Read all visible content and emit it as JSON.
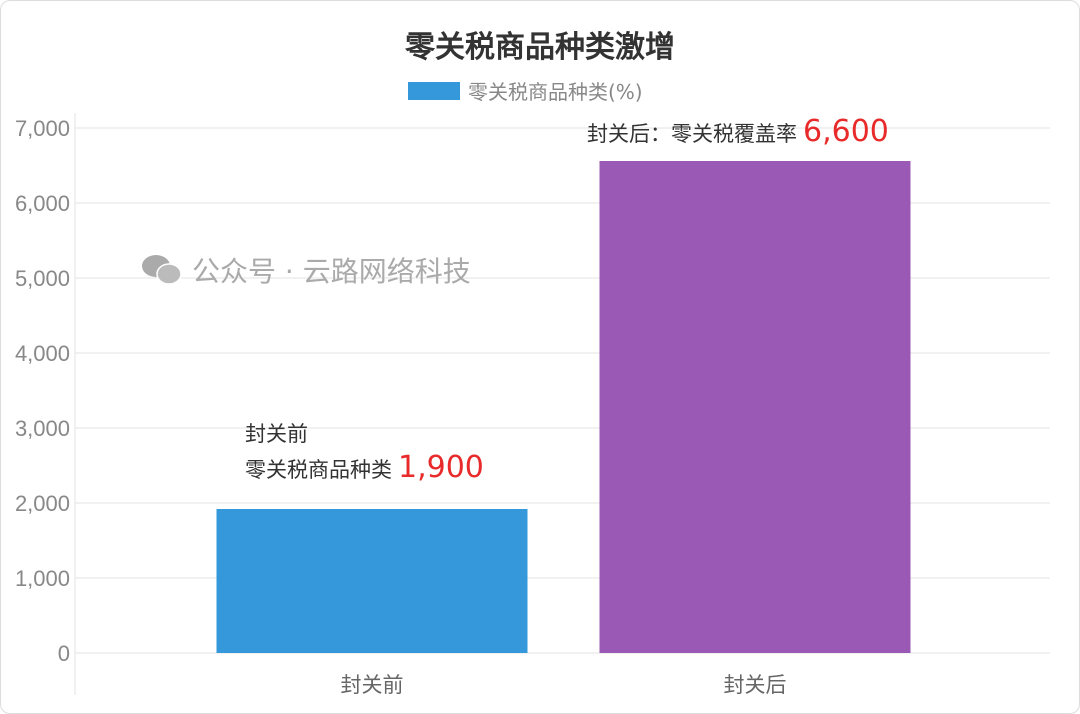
{
  "chart_data": {
    "type": "bar",
    "title": "零关税商品种类激增",
    "legend": {
      "label": "零关税商品种类(%)",
      "color": "#3498db",
      "position": "top"
    },
    "categories": [
      "封关前",
      "封关后"
    ],
    "values": [
      1920,
      6560
    ],
    "colors": [
      "#3498db",
      "#9b59b6"
    ],
    "ylim": [
      0,
      7000
    ],
    "yticks": [
      "0",
      "1,000",
      "2,000",
      "3,000",
      "4,000",
      "5,000",
      "6,000",
      "7,000"
    ],
    "ytick_values": [
      0,
      1000,
      2000,
      3000,
      4000,
      5000,
      6000,
      7000
    ],
    "grid": true,
    "annotations": [
      {
        "line1": "封关前",
        "line2": "零关税商品种类",
        "value": "1,900"
      },
      {
        "line1": "封关后：零关税覆盖率",
        "value": "6,600"
      }
    ]
  },
  "watermark": {
    "icon": "wechat-icon",
    "text": "公众号 · 云路网络科技"
  }
}
